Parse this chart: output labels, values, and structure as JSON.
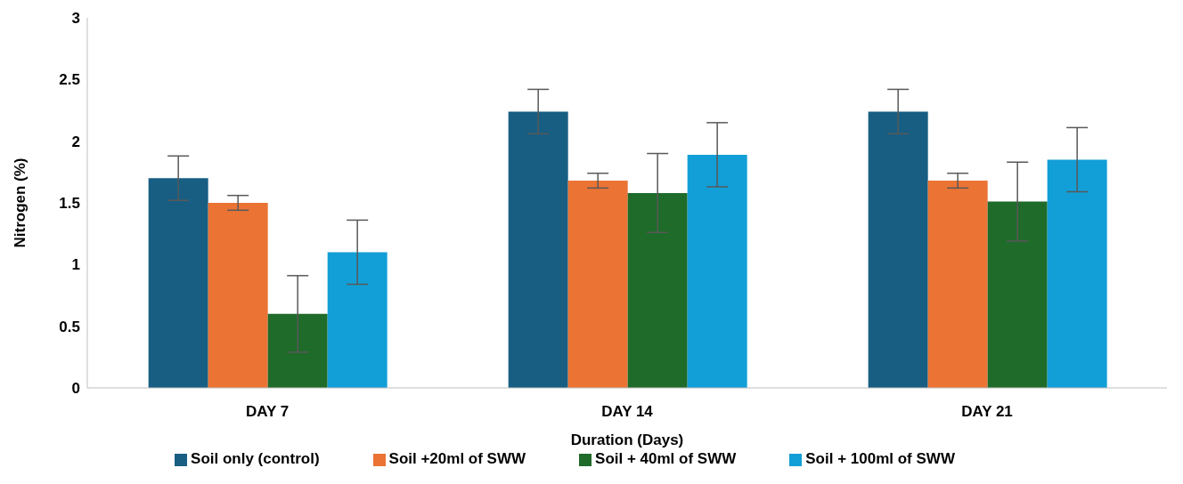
{
  "chart_data": {
    "type": "bar",
    "xlabel": "Duration (Days)",
    "ylabel": "Nitrogen (%)",
    "categories": [
      "DAY 7",
      "DAY 14",
      "DAY 21"
    ],
    "series": [
      {
        "name": "Soil only (control)",
        "color": "#175e82",
        "values": [
          1.7,
          2.24,
          2.24
        ],
        "errors": [
          0.18,
          0.18,
          0.18
        ]
      },
      {
        "name": "Soil +20ml of SWW",
        "color": "#eb7434",
        "values": [
          1.5,
          1.68,
          1.68
        ],
        "errors": [
          0.06,
          0.06,
          0.06
        ]
      },
      {
        "name": "Soil + 40ml of SWW",
        "color": "#1e6b2a",
        "values": [
          0.6,
          1.58,
          1.51
        ],
        "errors": [
          0.31,
          0.32,
          0.32
        ]
      },
      {
        "name": "Soil + 100ml of SWW",
        "color": "#129ed6",
        "values": [
          1.1,
          1.89,
          1.85
        ],
        "errors": [
          0.26,
          0.26,
          0.26
        ]
      }
    ],
    "ylim": [
      0,
      3
    ],
    "yticks": [
      0,
      0.5,
      1,
      1.5,
      2,
      2.5,
      3
    ],
    "grid": false,
    "legend": "bottom"
  }
}
